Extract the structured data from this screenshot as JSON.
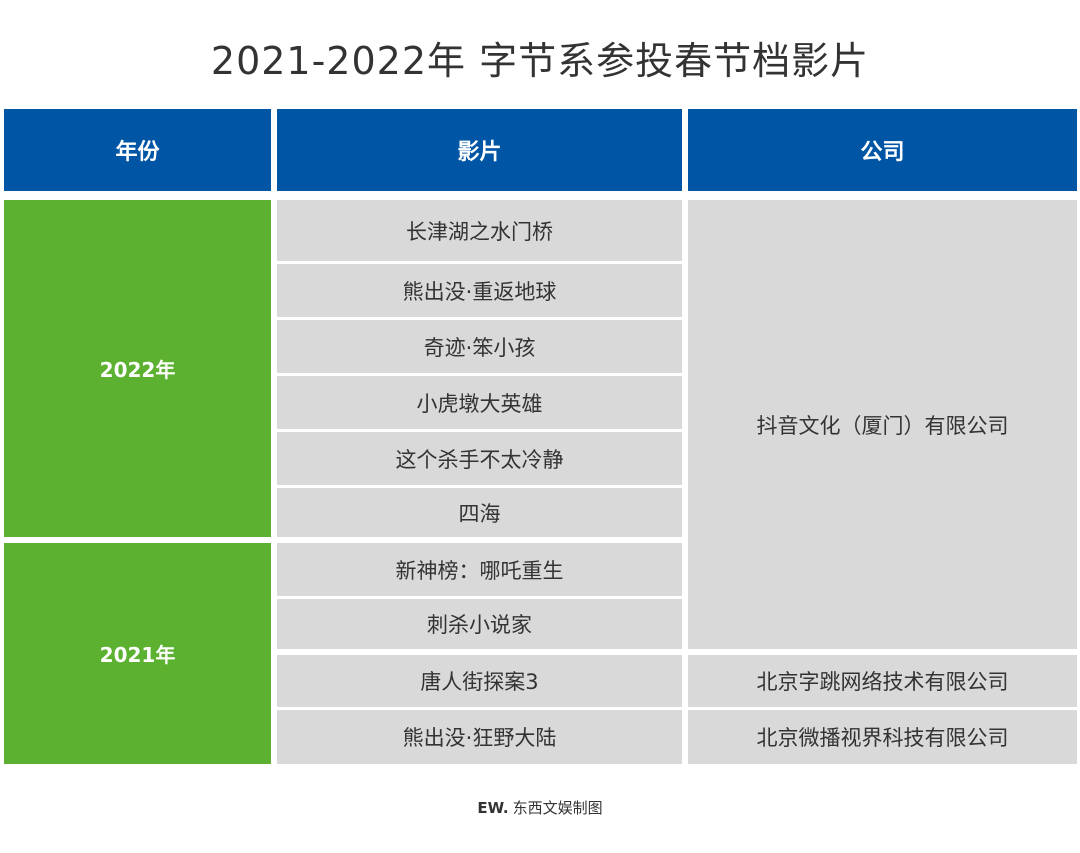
{
  "title": "2021-2022年 字节系参投春节档影片",
  "colors": {
    "header_bg": "#0055a5",
    "year_bg": "#5cb130",
    "cell_bg": "#d9d9d9"
  },
  "headers": [
    "年份",
    "影片",
    "公司"
  ],
  "years": [
    "2022年",
    "2021年"
  ],
  "films": [
    "长津湖之水门桥",
    "熊出没·重返地球",
    "奇迹·笨小孩",
    "小虎墩大英雄",
    "这个杀手不太冷静",
    "四海",
    "新神榜：哪吒重生",
    "刺杀小说家",
    "唐人街探案3",
    "熊出没·狂野大陆"
  ],
  "companies": [
    "抖音文化（厦门）有限公司",
    "北京字跳网络技术有限公司",
    "北京微播视界科技有限公司"
  ],
  "footer": {
    "logo": "EW.",
    "text": "东西文娱制图"
  }
}
